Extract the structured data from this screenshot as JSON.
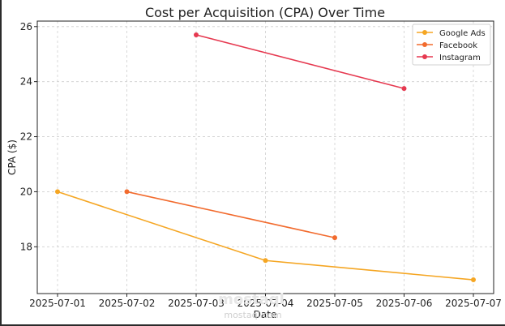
{
  "chart_data": {
    "type": "line",
    "title": "Cost per Acquisition (CPA) Over Time",
    "xlabel": "Date",
    "ylabel": "CPA ($)",
    "categories": [
      "2025-07-01",
      "2025-07-02",
      "2025-07-03",
      "2025-07-04",
      "2025-07-05",
      "2025-07-06",
      "2025-07-07"
    ],
    "yticks": [
      18,
      20,
      22,
      24,
      26
    ],
    "ylim": [
      16.3,
      26.2
    ],
    "grid": true,
    "legend_position": "top-right",
    "series": [
      {
        "name": "Google Ads",
        "color": "#f5a623",
        "points": [
          {
            "x": "2025-07-01",
            "y": 20.0
          },
          {
            "x": "2025-07-04",
            "y": 17.5
          },
          {
            "x": "2025-07-07",
            "y": 16.8
          }
        ]
      },
      {
        "name": "Facebook",
        "color": "#f26b2e",
        "points": [
          {
            "x": "2025-07-02",
            "y": 20.0
          },
          {
            "x": "2025-07-05",
            "y": 18.33
          }
        ]
      },
      {
        "name": "Instagram",
        "color": "#e63950",
        "points": [
          {
            "x": "2025-07-03",
            "y": 25.7
          },
          {
            "x": "2025-07-06",
            "y": 23.75
          }
        ]
      }
    ]
  },
  "watermark": {
    "brand": "mostaql",
    "site": "mostaql.com"
  }
}
